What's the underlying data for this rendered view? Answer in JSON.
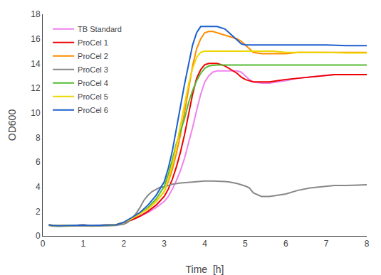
{
  "chart_data": {
    "type": "line",
    "xlabel": "Time  [h]",
    "ylabel": "OD600",
    "xlim": [
      0,
      8
    ],
    "ylim": [
      0,
      18
    ],
    "xticks": [
      0,
      1,
      2,
      3,
      4,
      5,
      6,
      7,
      8
    ],
    "yticks": [
      0,
      2,
      4,
      6,
      8,
      10,
      12,
      14,
      16,
      18
    ],
    "grid": false,
    "legend": "upper left",
    "series": [
      {
        "name": "TB Standard",
        "color": "#EE82EE",
        "x": [
          0.15,
          0.25,
          0.4,
          0.6,
          0.8,
          1.0,
          1.2,
          1.4,
          1.6,
          1.8,
          2.0,
          2.2,
          2.4,
          2.6,
          2.8,
          3.0,
          3.1,
          3.2,
          3.3,
          3.4,
          3.5,
          3.6,
          3.7,
          3.8,
          3.9,
          4.0,
          4.1,
          4.2,
          4.3,
          4.4,
          4.5,
          4.6,
          4.7,
          4.8,
          4.9,
          5.0,
          5.1,
          5.2,
          5.4,
          5.6,
          5.8,
          6.0,
          6.3,
          6.6,
          6.9,
          7.2,
          7.5,
          7.8,
          8.0
        ],
        "values": [
          0.9,
          0.85,
          0.82,
          0.85,
          0.85,
          0.88,
          0.85,
          0.85,
          0.88,
          0.9,
          1.1,
          1.3,
          1.6,
          1.9,
          2.3,
          2.8,
          3.2,
          3.8,
          4.5,
          5.3,
          6.3,
          7.5,
          8.8,
          10.2,
          11.5,
          12.5,
          13.0,
          13.3,
          13.4,
          13.4,
          13.4,
          13.4,
          13.4,
          13.4,
          13.3,
          13.0,
          12.7,
          12.5,
          12.4,
          12.4,
          12.5,
          12.6,
          12.8,
          12.9,
          13.0,
          13.1,
          13.1,
          13.1,
          13.1
        ]
      },
      {
        "name": "ProCel 1",
        "color": "#EE0000",
        "x": [
          0.15,
          0.25,
          0.4,
          0.6,
          0.8,
          1.0,
          1.2,
          1.4,
          1.6,
          1.8,
          2.0,
          2.2,
          2.4,
          2.6,
          2.8,
          3.0,
          3.1,
          3.2,
          3.3,
          3.4,
          3.5,
          3.6,
          3.7,
          3.8,
          3.9,
          4.0,
          4.1,
          4.2,
          4.3,
          4.4,
          4.5,
          4.6,
          4.7,
          4.8,
          4.9,
          5.0,
          5.1,
          5.2,
          5.4,
          5.6,
          5.8,
          6.0,
          6.3,
          6.6,
          6.9,
          7.2,
          7.5,
          7.8,
          8.0
        ],
        "values": [
          0.9,
          0.85,
          0.82,
          0.85,
          0.85,
          0.88,
          0.85,
          0.85,
          0.88,
          0.9,
          1.1,
          1.3,
          1.6,
          2.0,
          2.5,
          3.2,
          3.8,
          4.6,
          5.6,
          6.8,
          8.2,
          9.8,
          11.5,
          12.8,
          13.5,
          13.9,
          14.0,
          14.0,
          14.0,
          13.9,
          13.8,
          13.6,
          13.4,
          13.2,
          12.9,
          12.7,
          12.6,
          12.5,
          12.5,
          12.5,
          12.6,
          12.7,
          12.8,
          12.9,
          13.0,
          13.1,
          13.1,
          13.1,
          13.1
        ]
      },
      {
        "name": "ProCel 2",
        "color": "#FF8C00",
        "x": [
          0.15,
          0.25,
          0.4,
          0.6,
          0.8,
          1.0,
          1.2,
          1.4,
          1.6,
          1.8,
          2.0,
          2.2,
          2.4,
          2.6,
          2.8,
          3.0,
          3.1,
          3.2,
          3.3,
          3.4,
          3.5,
          3.6,
          3.7,
          3.8,
          3.9,
          4.0,
          4.1,
          4.2,
          4.3,
          4.4,
          4.5,
          4.6,
          4.7,
          4.8,
          4.9,
          5.0,
          5.1,
          5.2,
          5.4,
          5.6,
          5.8,
          6.0,
          6.3,
          6.6,
          6.9,
          7.2,
          7.5,
          7.8,
          8.0
        ],
        "values": [
          0.9,
          0.85,
          0.82,
          0.85,
          0.85,
          0.88,
          0.85,
          0.85,
          0.88,
          0.9,
          1.1,
          1.4,
          1.8,
          2.2,
          2.8,
          3.6,
          4.4,
          5.4,
          6.7,
          8.2,
          10.0,
          12.0,
          13.8,
          15.2,
          16.0,
          16.5,
          16.6,
          16.6,
          16.5,
          16.4,
          16.3,
          16.2,
          16.1,
          16.0,
          15.8,
          15.5,
          15.2,
          14.9,
          14.8,
          14.8,
          14.8,
          14.8,
          14.9,
          14.9,
          14.9,
          14.9,
          14.9,
          14.9,
          14.9
        ]
      },
      {
        "name": "ProCel 3",
        "color": "#888888",
        "x": [
          0.15,
          0.25,
          0.4,
          0.6,
          0.8,
          1.0,
          1.2,
          1.4,
          1.6,
          1.8,
          2.0,
          2.1,
          2.2,
          2.3,
          2.4,
          2.5,
          2.6,
          2.7,
          2.8,
          2.9,
          3.0,
          3.1,
          3.2,
          3.4,
          3.6,
          3.8,
          4.0,
          4.2,
          4.4,
          4.5,
          4.6,
          4.7,
          4.8,
          4.9,
          5.0,
          5.1,
          5.2,
          5.4,
          5.6,
          5.8,
          6.0,
          6.3,
          6.6,
          6.9,
          7.2,
          7.5,
          7.8,
          8.0
        ],
        "values": [
          0.85,
          0.8,
          0.78,
          0.8,
          0.8,
          0.82,
          0.8,
          0.8,
          0.82,
          0.85,
          0.95,
          1.1,
          1.4,
          1.8,
          2.3,
          2.9,
          3.3,
          3.6,
          3.8,
          3.95,
          4.0,
          4.1,
          4.2,
          4.3,
          4.35,
          4.4,
          4.45,
          4.45,
          4.45,
          4.42,
          4.38,
          4.32,
          4.25,
          4.15,
          4.05,
          3.9,
          3.5,
          3.2,
          3.2,
          3.3,
          3.4,
          3.7,
          3.9,
          4.0,
          4.1,
          4.1,
          4.15,
          4.15
        ]
      },
      {
        "name": "ProCel 4",
        "color": "#55BB33",
        "x": [
          0.15,
          0.25,
          0.4,
          0.6,
          0.8,
          1.0,
          1.2,
          1.4,
          1.6,
          1.8,
          2.0,
          2.2,
          2.4,
          2.6,
          2.8,
          3.0,
          3.1,
          3.2,
          3.3,
          3.4,
          3.5,
          3.6,
          3.7,
          3.8,
          3.9,
          4.0,
          4.1,
          4.2,
          4.3,
          4.5,
          4.7,
          4.9,
          5.1,
          5.4,
          5.7,
          6.0,
          6.5,
          7.0,
          7.5,
          8.0
        ],
        "values": [
          0.9,
          0.85,
          0.82,
          0.85,
          0.85,
          0.88,
          0.85,
          0.85,
          0.88,
          0.9,
          1.1,
          1.4,
          1.8,
          2.3,
          3.0,
          4.0,
          5.0,
          6.2,
          7.5,
          8.5,
          9.5,
          10.8,
          11.8,
          12.6,
          13.2,
          13.6,
          13.8,
          13.85,
          13.88,
          13.88,
          13.88,
          13.87,
          13.87,
          13.87,
          13.87,
          13.87,
          13.87,
          13.87,
          13.87,
          13.87
        ]
      },
      {
        "name": "ProCel 5",
        "color": "#EED700",
        "x": [
          0.15,
          0.25,
          0.4,
          0.6,
          0.8,
          1.0,
          1.2,
          1.4,
          1.6,
          1.8,
          2.0,
          2.2,
          2.4,
          2.6,
          2.8,
          3.0,
          3.1,
          3.2,
          3.3,
          3.4,
          3.5,
          3.6,
          3.7,
          3.8,
          3.9,
          4.0,
          4.1,
          4.2,
          4.3,
          4.5,
          4.7,
          4.9,
          5.1,
          5.4,
          5.7,
          6.0,
          6.5,
          7.0,
          7.5,
          8.0
        ],
        "values": [
          0.9,
          0.85,
          0.82,
          0.85,
          0.85,
          0.88,
          0.85,
          0.85,
          0.88,
          0.9,
          1.1,
          1.4,
          1.8,
          2.2,
          2.8,
          3.6,
          4.6,
          5.8,
          7.3,
          8.9,
          10.6,
          12.3,
          13.6,
          14.5,
          14.9,
          15.0,
          15.0,
          15.0,
          15.0,
          15.0,
          15.0,
          15.0,
          15.0,
          15.0,
          15.0,
          14.9,
          14.9,
          14.9,
          14.85,
          14.85
        ]
      },
      {
        "name": "ProCel 6",
        "color": "#1E5FCC",
        "x": [
          0.15,
          0.25,
          0.4,
          0.6,
          0.8,
          1.0,
          1.2,
          1.4,
          1.6,
          1.8,
          2.0,
          2.2,
          2.4,
          2.6,
          2.8,
          3.0,
          3.1,
          3.2,
          3.3,
          3.4,
          3.5,
          3.6,
          3.7,
          3.8,
          3.9,
          4.0,
          4.1,
          4.2,
          4.3,
          4.4,
          4.5,
          4.6,
          4.7,
          4.8,
          4.85,
          4.9,
          5.0,
          5.1,
          5.2,
          5.4,
          5.6,
          5.8,
          6.0,
          6.5,
          7.0,
          7.5,
          8.0
        ],
        "values": [
          0.9,
          0.85,
          0.82,
          0.85,
          0.85,
          0.88,
          0.85,
          0.85,
          0.88,
          0.9,
          1.1,
          1.5,
          1.9,
          2.5,
          3.3,
          4.4,
          5.5,
          6.9,
          8.6,
          10.5,
          12.3,
          14.0,
          15.5,
          16.5,
          17.0,
          17.0,
          17.0,
          17.0,
          17.0,
          16.9,
          16.8,
          16.5,
          16.2,
          15.9,
          15.7,
          15.6,
          15.5,
          15.5,
          15.5,
          15.5,
          15.5,
          15.5,
          15.5,
          15.5,
          15.5,
          15.45,
          15.45
        ]
      }
    ]
  }
}
